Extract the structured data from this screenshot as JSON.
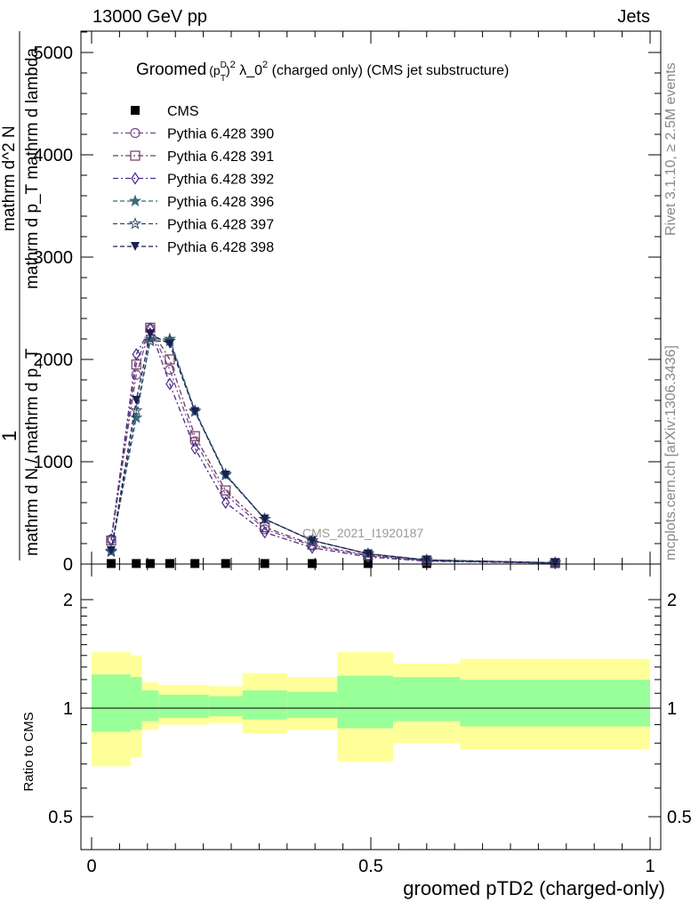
{
  "header": {
    "left": "13000 GeV pp",
    "right": "Jets"
  },
  "side": {
    "rivet": "Rivet 3.1.10, ≥ 2.5M events",
    "mcplots": "mcplots.cern.ch [arXiv:1306.3436]"
  },
  "plot_title": {
    "groomed": "Groomed",
    "p": "(p",
    "sup_D": "D",
    "sub_T": "T",
    "close": ")",
    "sup2": "2",
    "lambda": " λ_0",
    "sup2b": "2",
    "rest": "  (charged only) (CMS jet substructure)"
  },
  "watermark": "CMS_2021_I1920187",
  "y_label_main": {
    "numerator": "1",
    "denominator": "mathrm d N / mathrm d p_T",
    "right_num": "mathrm d^2 N",
    "right_den": "mathrm d p_T mathrm d lambda"
  },
  "y_label_ratio": "Ratio to CMS",
  "x_label": "groomed pTD2 (charged-only)",
  "colors": {
    "p390": "#7a4a8a",
    "p391": "#6b3d5e",
    "p392": "#4a2d8a",
    "p396": "#3b6b7a",
    "p397": "#2e4a6b",
    "p398": "#1a2050",
    "band_outer": "#ffff99",
    "band_inner": "#99ff99"
  },
  "chart_data": [
    {
      "type": "line",
      "panel": "main",
      "xlim": [
        0,
        1
      ],
      "ylim": [
        0,
        5200
      ],
      "x_ticks": [
        0,
        0.5,
        1
      ],
      "x_tick_labels": [
        "0",
        "0.5",
        "1"
      ],
      "y_ticks": [
        0,
        1000,
        2000,
        3000,
        4000,
        5000
      ],
      "y_tick_labels": [
        "0",
        "1000",
        "2000",
        "3000",
        "4000",
        "5000"
      ],
      "x": [
        0.035,
        0.08,
        0.105,
        0.14,
        0.185,
        0.24,
        0.31,
        0.395,
        0.495,
        0.6,
        0.83
      ],
      "legend_position": "top-left",
      "series": [
        {
          "name": "CMS",
          "marker": "square",
          "color": "#000000",
          "values": [
            5,
            5,
            5,
            5,
            5,
            5,
            5,
            5,
            5,
            5,
            5
          ]
        },
        {
          "name": "Pythia 6.428 390",
          "marker": "circle",
          "color": "#7a4a8a",
          "dash": "dashdot",
          "values": [
            240,
            1850,
            2300,
            1900,
            1200,
            680,
            340,
            180,
            80,
            30,
            10
          ]
        },
        {
          "name": "Pythia 6.428 391",
          "marker": "square-open",
          "color": "#6b3d5e",
          "dash": "dashdot",
          "values": [
            230,
            1950,
            2310,
            2000,
            1250,
            720,
            360,
            190,
            85,
            32,
            10
          ]
        },
        {
          "name": "Pythia 6.428 392",
          "marker": "diamond-open",
          "color": "#4a2d8a",
          "dash": "dashdot",
          "values": [
            240,
            2050,
            2300,
            1760,
            1130,
            600,
            310,
            160,
            70,
            28,
            8
          ]
        },
        {
          "name": "Pythia 6.428 396",
          "marker": "star-filled",
          "color": "#3b6b7a",
          "dash": "dashed",
          "values": [
            130,
            1430,
            2200,
            2200,
            1500,
            880,
            440,
            230,
            100,
            40,
            12
          ]
        },
        {
          "name": "Pythia 6.428 397",
          "marker": "star-open",
          "color": "#2e4a6b",
          "dash": "dashed",
          "values": [
            120,
            1500,
            2180,
            2180,
            1490,
            870,
            440,
            230,
            100,
            40,
            12
          ]
        },
        {
          "name": "Pythia 6.428 398",
          "marker": "triangle-down",
          "color": "#1a2050",
          "dash": "dashed",
          "values": [
            130,
            1600,
            2250,
            2150,
            1490,
            870,
            440,
            230,
            100,
            40,
            12
          ]
        }
      ]
    },
    {
      "type": "area",
      "panel": "ratio",
      "xlim": [
        0,
        1
      ],
      "ylim": [
        0.35,
        2.3
      ],
      "y_ticks": [
        0.5,
        1,
        2
      ],
      "y_tick_labels": [
        "0.5",
        "1",
        "2"
      ],
      "x_ticks": [
        0,
        0.5,
        1
      ],
      "x_tick_labels": [
        "0",
        "0.5",
        "1"
      ],
      "reference_line": 1,
      "bins": [
        {
          "x0": 0.0,
          "x1": 0.07,
          "outer": [
            0.69,
            1.43
          ],
          "inner": [
            0.86,
            1.24
          ]
        },
        {
          "x0": 0.07,
          "x1": 0.09,
          "outer": [
            0.73,
            1.4
          ],
          "inner": [
            0.87,
            1.22
          ]
        },
        {
          "x0": 0.09,
          "x1": 0.12,
          "outer": [
            0.87,
            1.18
          ],
          "inner": [
            0.92,
            1.12
          ]
        },
        {
          "x0": 0.12,
          "x1": 0.16,
          "outer": [
            0.9,
            1.16
          ],
          "inner": [
            0.94,
            1.09
          ]
        },
        {
          "x0": 0.16,
          "x1": 0.21,
          "outer": [
            0.9,
            1.16
          ],
          "inner": [
            0.94,
            1.09
          ]
        },
        {
          "x0": 0.21,
          "x1": 0.27,
          "outer": [
            0.91,
            1.15
          ],
          "inner": [
            0.95,
            1.08
          ]
        },
        {
          "x0": 0.27,
          "x1": 0.35,
          "outer": [
            0.85,
            1.25
          ],
          "inner": [
            0.93,
            1.12
          ]
        },
        {
          "x0": 0.35,
          "x1": 0.44,
          "outer": [
            0.87,
            1.22
          ],
          "inner": [
            0.94,
            1.11
          ]
        },
        {
          "x0": 0.44,
          "x1": 0.54,
          "outer": [
            0.71,
            1.43
          ],
          "inner": [
            0.88,
            1.23
          ]
        },
        {
          "x0": 0.54,
          "x1": 0.66,
          "outer": [
            0.8,
            1.33
          ],
          "inner": [
            0.92,
            1.22
          ]
        },
        {
          "x0": 0.66,
          "x1": 1.0,
          "outer": [
            0.77,
            1.37
          ],
          "inner": [
            0.89,
            1.2
          ]
        }
      ]
    }
  ]
}
